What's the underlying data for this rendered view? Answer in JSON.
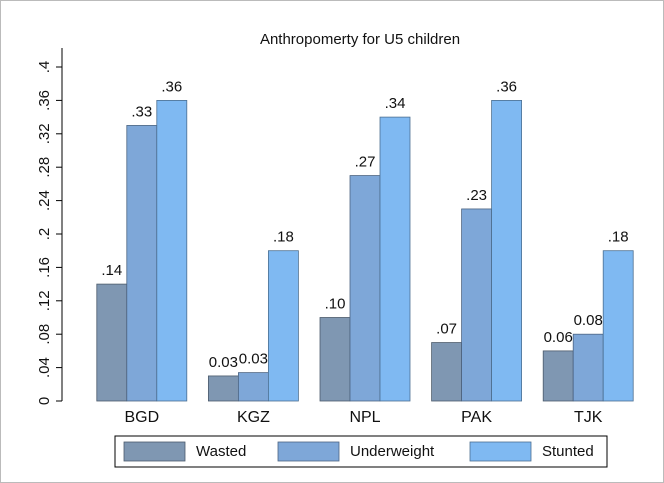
{
  "chart_data": {
    "type": "bar",
    "title": "Anthropomerty for U5 children",
    "categories": [
      "BGD",
      "KGZ",
      "NPL",
      "PAK",
      "TJK"
    ],
    "series": [
      {
        "name": "Wasted",
        "color": "#7f97b2",
        "values": [
          0.14,
          0.03,
          0.1,
          0.07,
          0.06
        ],
        "value_labels": [
          ".14",
          "0.03",
          ".10",
          ".07",
          "0.06"
        ]
      },
      {
        "name": "Underweight",
        "color": "#7ea7d8",
        "values": [
          0.33,
          0.034,
          0.27,
          0.23,
          0.08
        ],
        "value_labels": [
          ".33",
          "0.03",
          ".27",
          ".23",
          "0.08"
        ]
      },
      {
        "name": "Stunted",
        "color": "#7fb9f2",
        "values": [
          0.36,
          0.18,
          0.34,
          0.36,
          0.18
        ],
        "value_labels": [
          ".36",
          ".18",
          ".34",
          ".36",
          ".18"
        ]
      }
    ],
    "ylim": [
      0,
      0.4
    ],
    "yticks": [
      0,
      {
        "value": 0.04,
        "label": ".04"
      },
      {
        "value": 0.08,
        "label": ".08"
      },
      {
        "value": 0.12,
        "label": ".12"
      },
      {
        "value": 0.16,
        "label": ".16"
      },
      {
        "value": 0.2,
        "label": ".2"
      },
      {
        "value": 0.24,
        "label": ".24"
      },
      {
        "value": 0.28,
        "label": ".28"
      },
      {
        "value": 0.32,
        "label": ".32"
      },
      {
        "value": 0.36,
        "label": ".36"
      },
      {
        "value": 0.4,
        "label": ".4"
      }
    ],
    "grid": false
  }
}
